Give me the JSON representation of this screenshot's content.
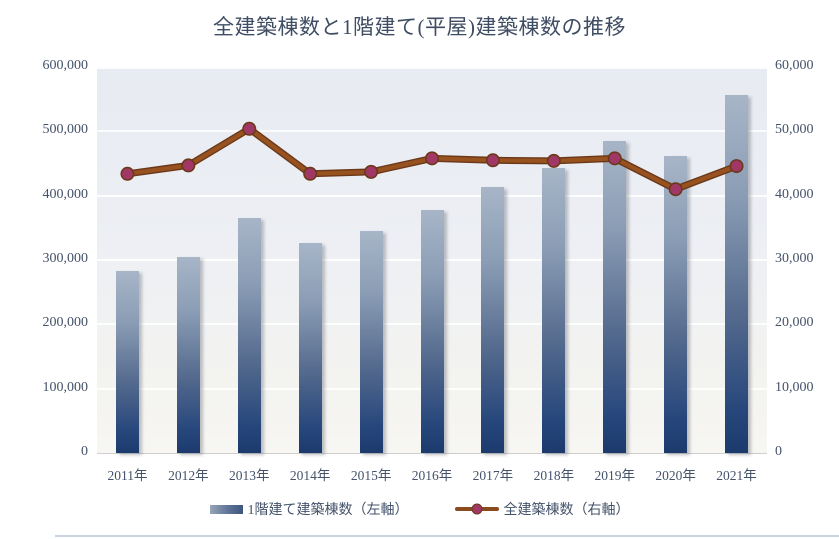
{
  "chart_title": "全建築棟数と1階建て(平屋)建築棟数の推移",
  "legend": {
    "items": [
      {
        "label": "1階建て建築棟数（左軸）",
        "marker": "bar-swatch"
      },
      {
        "label": "全建築棟数（右軸）",
        "marker": "line-marker"
      }
    ]
  },
  "colors": {
    "title_text": "#3F4D63",
    "axis_text": "#44526A",
    "bar_gradient_top": "#A7B5C7",
    "bar_gradient_bottom": "#1C3A6C",
    "line": "#97521F",
    "line_edge": "#6B3919",
    "marker_fill": "#A03765",
    "marker_stroke": "#6B3919",
    "plot_bg_top": "#E7EBF2",
    "plot_bg_bottom": "#F7F6F2"
  },
  "chart_data": {
    "type": "bar",
    "subtype": "bar-and-line-dual-axis",
    "title": "全建築棟数と1階建て(平屋)建築棟数の推移",
    "categories": [
      "2011年",
      "2012年",
      "2013年",
      "2014年",
      "2015年",
      "2016年",
      "2017年",
      "2018年",
      "2019年",
      "2020年",
      "2021年"
    ],
    "series": [
      {
        "name": "1階建て建築棟数（左軸）",
        "type": "bar",
        "axis": "left",
        "values": [
          283000,
          305000,
          365000,
          327000,
          345000,
          377000,
          414000,
          443000,
          485000,
          462000,
          557000
        ]
      },
      {
        "name": "全建築棟数（右軸）",
        "type": "line",
        "axis": "right",
        "values": [
          43400,
          44700,
          50400,
          43400,
          43700,
          45800,
          45500,
          45400,
          45800,
          41000,
          44600
        ]
      }
    ],
    "left_axis": {
      "min": 0,
      "max": 600000,
      "tick_step": 100000,
      "tick_labels": [
        "0",
        "100,000",
        "200,000",
        "300,000",
        "400,000",
        "500,000",
        "600,000"
      ]
    },
    "right_axis": {
      "min": 0,
      "max": 60000,
      "tick_step": 10000,
      "tick_labels": [
        "0",
        "10,000",
        "20,000",
        "30,000",
        "40,000",
        "50,000",
        "60,000"
      ]
    },
    "xlabel": "",
    "ylabel": "",
    "grid": true,
    "legend_position": "bottom"
  }
}
